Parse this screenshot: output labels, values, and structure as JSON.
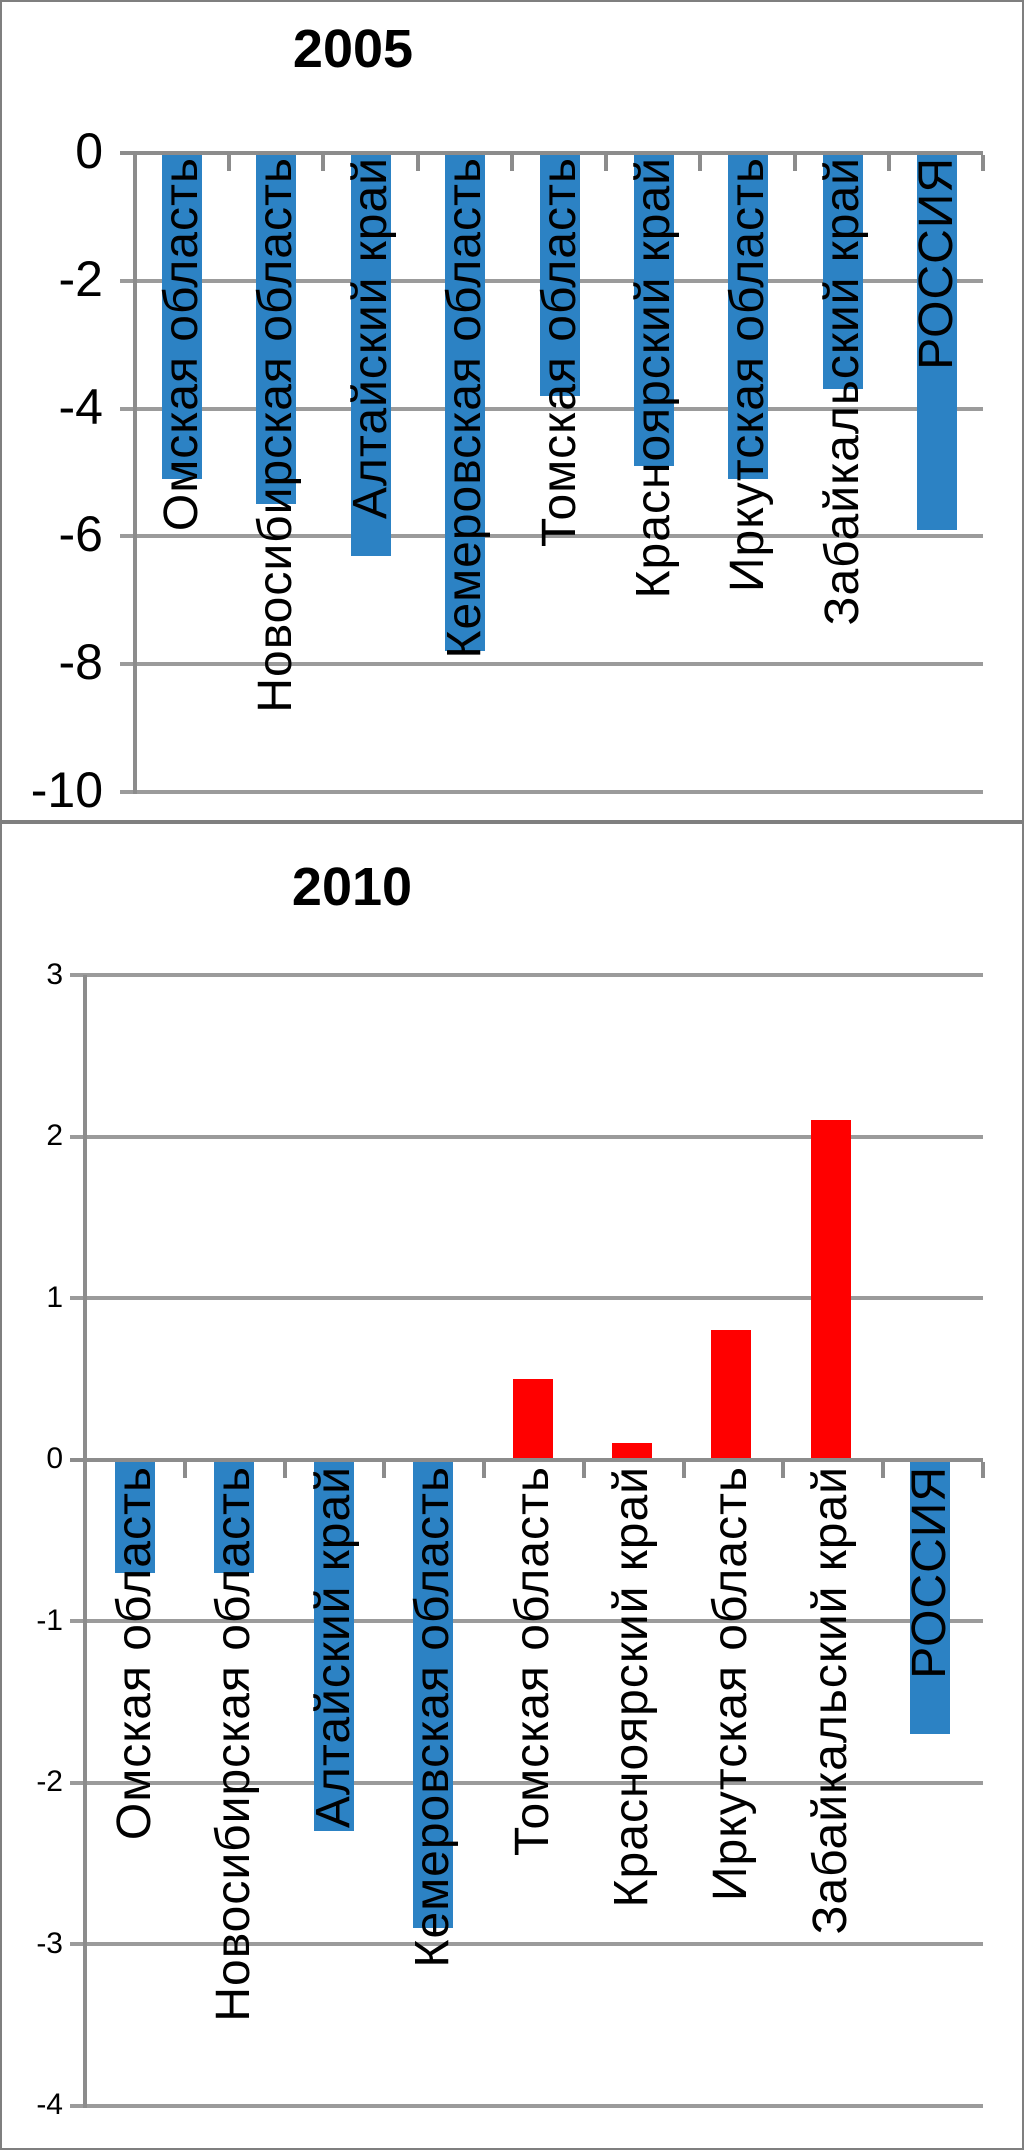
{
  "chart_data": [
    {
      "type": "bar",
      "title": "2005",
      "categories": [
        "Омская область",
        "Новосибирская область",
        "Алтайский край",
        "Кемеровская область",
        "Томская область",
        "Красноярский край",
        "Иркутская область",
        "Забайкальский край",
        "РОССИЯ"
      ],
      "values": [
        -5.1,
        -5.5,
        -6.3,
        -7.8,
        -3.8,
        -4.9,
        -5.1,
        -3.7,
        -5.9
      ],
      "ylim": [
        -10,
        0
      ],
      "yticks": [
        0,
        -2,
        -4,
        -6,
        -8,
        -10
      ],
      "ytick_labels": [
        "0",
        "-2",
        "-4",
        "-6",
        "-8",
        "-10"
      ],
      "xlabel": "",
      "ylabel": "",
      "grid": true,
      "legend": "none",
      "bar_color_negative": "#2C82C4",
      "bar_color_positive": "#FF0000"
    },
    {
      "type": "bar",
      "title": "2010",
      "categories": [
        "Омская область",
        "Новосибирская область",
        "Алтайский край",
        "Кемеровская область",
        "Томская область",
        "Красноярский край",
        "Иркутская область",
        "Забайкальский край",
        "РОССИЯ"
      ],
      "values": [
        -0.7,
        -0.7,
        -2.3,
        -2.9,
        0.5,
        0.1,
        0.8,
        2.1,
        -1.7
      ],
      "ylim": [
        -4,
        3
      ],
      "yticks": [
        3,
        2,
        1,
        0,
        -1,
        -2,
        -3,
        -4
      ],
      "ytick_labels": [
        "3",
        "2",
        "1",
        "0",
        "-1",
        "-2",
        "-3",
        "-4"
      ],
      "xlabel": "",
      "ylabel": "",
      "grid": true,
      "legend": "none",
      "bar_color_negative": "#2C82C4",
      "bar_color_positive": "#FF0000"
    }
  ],
  "colors": {
    "bar_blue": "#2C82C4",
    "bar_red": "#FF0000",
    "gridline": "#9B9B9B",
    "axis": "#8C8C8C",
    "border": "#7F7F7F",
    "text": "#000000",
    "background": "#FFFFFF"
  }
}
